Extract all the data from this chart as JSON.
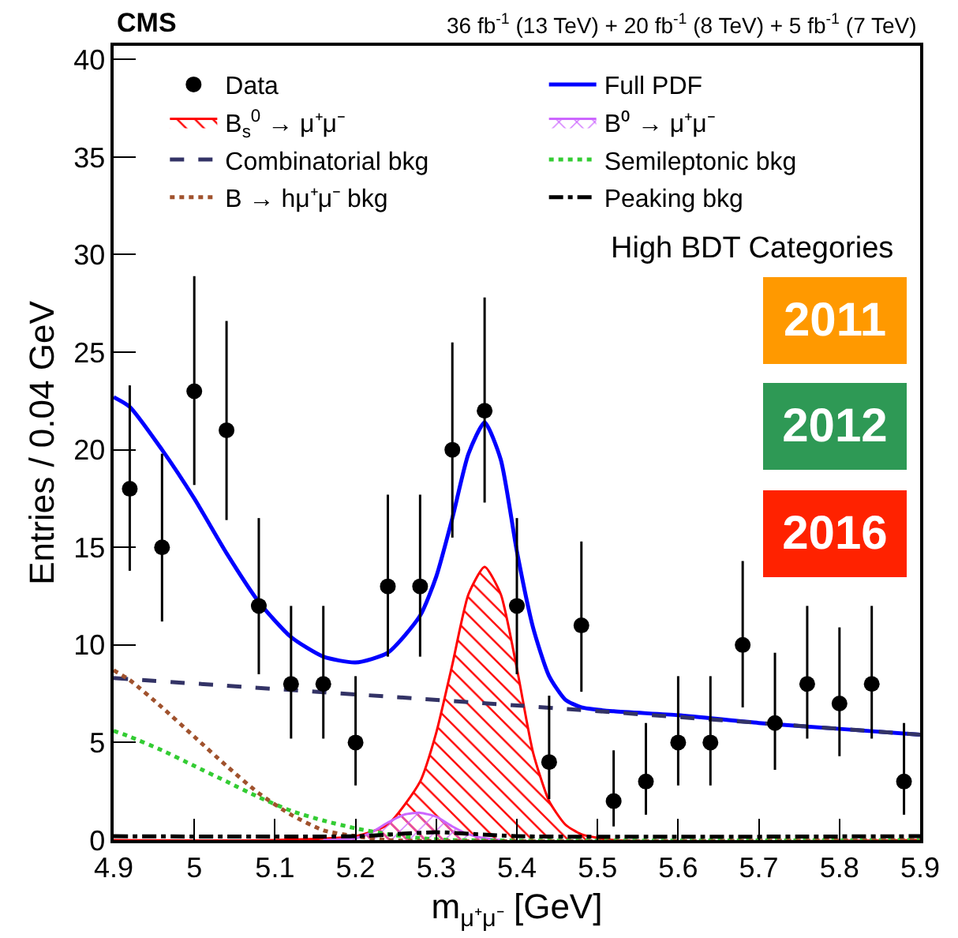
{
  "chart_data": {
    "type": "scatter",
    "title": "CMS",
    "subtitle": "36 fb$^{-1}$ (13 TeV) + 20 fb$^{-1}$ (8 TeV) + 5 fb$^{-1}$ (7 TeV)",
    "xlabel": "m$_{μ⁺μ⁻}$ [GeV]",
    "ylabel": "Entries / 0.04 GeV",
    "xlim": [
      4.9,
      5.9
    ],
    "xticks": [
      4.9,
      5,
      5.1,
      5.2,
      5.3,
      5.4,
      5.5,
      5.6,
      5.7,
      5.8,
      5.9
    ],
    "ylim": [
      0,
      40.7
    ],
    "yticks": [
      0,
      5,
      10,
      15,
      20,
      25,
      30,
      35,
      40
    ],
    "grid": false,
    "legend": "top",
    "annotations": [
      "High BDT Categories",
      "2011",
      "2012",
      "2016"
    ],
    "series": [
      {
        "name": "Data",
        "marker": "circle",
        "color": "#000000",
        "x": [
          4.92,
          4.96,
          5.0,
          5.04,
          5.08,
          5.12,
          5.16,
          5.2,
          5.24,
          5.28,
          5.32,
          5.36,
          5.4,
          5.44,
          5.48,
          5.52,
          5.56,
          5.6,
          5.64,
          5.68,
          5.72,
          5.76,
          5.8,
          5.84,
          5.88
        ],
        "values": [
          18,
          15,
          23,
          21,
          12,
          8,
          8,
          5,
          13,
          13,
          20,
          22,
          12,
          4,
          11,
          2,
          3,
          5,
          5,
          10,
          6,
          8,
          7,
          8,
          3
        ],
        "errors": [
          [
            13.8,
            23.3
          ],
          [
            11.2,
            19.8
          ],
          [
            18.2,
            28.9
          ],
          [
            16.4,
            26.6
          ],
          [
            8.5,
            16.5
          ],
          [
            5.2,
            12
          ],
          [
            5.2,
            12
          ],
          [
            2.8,
            8.4
          ],
          [
            9.4,
            17.7
          ],
          [
            9.4,
            17.7
          ],
          [
            15.5,
            25.5
          ],
          [
            17.3,
            27.8
          ],
          [
            8.5,
            16.5
          ],
          [
            2.1,
            7.4
          ],
          [
            7.6,
            15.3
          ],
          [
            0.7,
            4.6
          ],
          [
            1.3,
            6
          ],
          [
            2.8,
            8.4
          ],
          [
            2.8,
            8.4
          ],
          [
            6.8,
            14.3
          ],
          [
            3.6,
            9.6
          ],
          [
            5.2,
            12
          ],
          [
            4.3,
            10.9
          ],
          [
            5.2,
            12
          ],
          [
            1.3,
            6
          ]
        ]
      },
      {
        "name": "Full PDF",
        "type": "line",
        "line_style": "solid",
        "color": "#0000ff",
        "x": [
          4.9,
          4.92,
          4.96,
          5.0,
          5.04,
          5.08,
          5.12,
          5.16,
          5.2,
          5.24,
          5.28,
          5.3,
          5.32,
          5.34,
          5.36,
          5.38,
          5.4,
          5.42,
          5.44,
          5.46,
          5.48,
          5.52,
          5.6,
          5.7,
          5.8,
          5.9
        ],
        "values": [
          22.7,
          22.2,
          20,
          17.5,
          14.7,
          12.2,
          10.4,
          9.4,
          9.1,
          9.6,
          11.5,
          13.5,
          16.5,
          19.8,
          21.4,
          19.5,
          14.8,
          10.9,
          8.4,
          7.2,
          6.8,
          6.6,
          6.4,
          6.0,
          5.7,
          5.4
        ]
      },
      {
        "name": "B$_{s}$$^{0}$ → μ⁺μ⁻",
        "type": "area",
        "color": "#ff0000",
        "x": [
          4.9,
          5.1,
          5.2,
          5.24,
          5.28,
          5.3,
          5.32,
          5.34,
          5.36,
          5.38,
          5.4,
          5.42,
          5.44,
          5.46,
          5.48,
          5.52,
          5.9
        ],
        "values": [
          0,
          0,
          0.2,
          0.8,
          3,
          5.5,
          9,
          12.6,
          14,
          12.6,
          8.8,
          4.5,
          2.0,
          0.8,
          0.3,
          0,
          0
        ]
      },
      {
        "name": "B⁰ → μ⁺μ⁻",
        "type": "area",
        "color": "#cc66ff",
        "x": [
          5.16,
          5.2,
          5.22,
          5.24,
          5.26,
          5.28,
          5.3,
          5.32,
          5.34,
          5.36,
          5.38
        ],
        "values": [
          0,
          0.1,
          0.4,
          0.9,
          1.3,
          1.4,
          1.2,
          0.7,
          0.3,
          0.1,
          0
        ]
      },
      {
        "name": "Combinatorial bkg",
        "type": "line",
        "line_style": "dashed",
        "color": "#333366",
        "x": [
          4.9,
          5.4,
          5.9
        ],
        "values": [
          8.3,
          6.9,
          5.4
        ]
      },
      {
        "name": "Semileptonic bkg",
        "type": "line",
        "line_style": "dotted",
        "color": "#33cc33",
        "x": [
          4.9,
          4.92,
          4.96,
          5.0,
          5.04,
          5.08,
          5.12,
          5.16,
          5.2,
          5.24,
          5.28,
          5.32,
          5.9
        ],
        "values": [
          5.6,
          5.3,
          4.6,
          3.8,
          3.0,
          2.2,
          1.5,
          1.0,
          0.6,
          0.3,
          0.1,
          0,
          0
        ]
      },
      {
        "name": "B → hμ⁺μ⁻ bkg",
        "type": "line",
        "line_style": "dotted",
        "color": "#a0522d",
        "x": [
          4.9,
          4.92,
          4.96,
          5.0,
          5.04,
          5.08,
          5.12,
          5.16,
          5.2,
          5.24,
          5.9
        ],
        "values": [
          8.7,
          8.2,
          6.8,
          5.3,
          3.8,
          2.4,
          1.3,
          0.5,
          0.2,
          0,
          0
        ]
      },
      {
        "name": "Peaking bkg",
        "type": "line",
        "line_style": "dashdot",
        "color": "#000000",
        "x": [
          4.9,
          5.2,
          5.3,
          5.4,
          5.9
        ],
        "values": [
          0.2,
          0.2,
          0.4,
          0.2,
          0.2
        ]
      }
    ]
  }
}
